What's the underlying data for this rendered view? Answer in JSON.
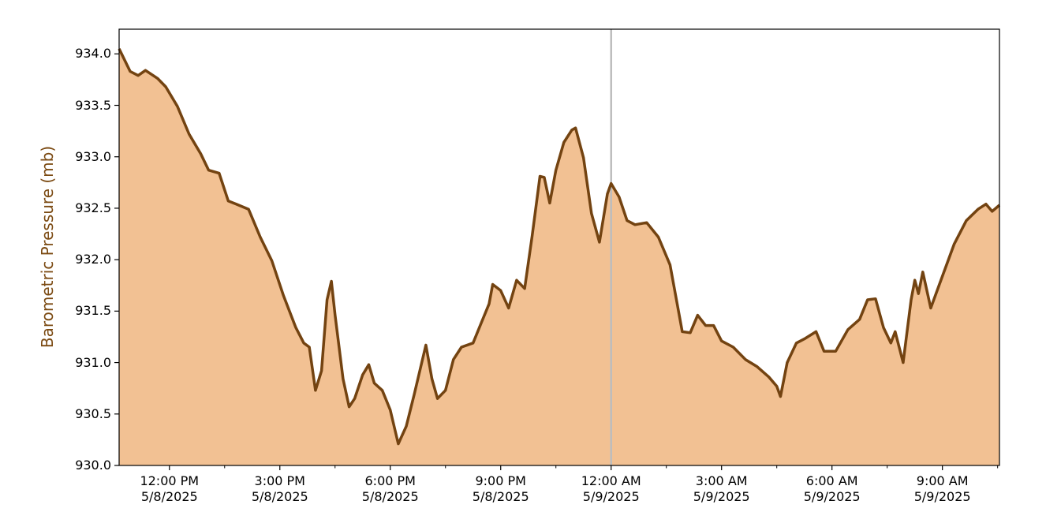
{
  "chart_data": {
    "type": "area",
    "ylabel": "Barometric Pressure (mb)",
    "line_color": "#734311",
    "fill_color": "#f2c193",
    "label_color": "#7b4a12",
    "vline": "2025-05-09 00:00",
    "vline_color": "#bdbdbd",
    "xlim": [
      "2025-05-08 10:38",
      "2025-05-09 10:33"
    ],
    "ylim": [
      930.0,
      934.24
    ],
    "yticks": [
      {
        "value": 930.0,
        "label": "930.0"
      },
      {
        "value": 930.5,
        "label": "930.5"
      },
      {
        "value": 931.0,
        "label": "931.0"
      },
      {
        "value": 931.5,
        "label": "931.5"
      },
      {
        "value": 932.0,
        "label": "932.0"
      },
      {
        "value": 932.5,
        "label": "932.5"
      },
      {
        "value": 933.0,
        "label": "933.0"
      },
      {
        "value": 933.5,
        "label": "933.5"
      },
      {
        "value": 934.0,
        "label": "934.0"
      }
    ],
    "xticks": [
      {
        "value": "2025-05-08 12:00",
        "label": "12:00 PM\n5/8/2025"
      },
      {
        "value": "2025-05-08 15:00",
        "label": "3:00 PM\n5/8/2025"
      },
      {
        "value": "2025-05-08 18:00",
        "label": "6:00 PM\n5/8/2025"
      },
      {
        "value": "2025-05-08 21:00",
        "label": "9:00 PM\n5/8/2025"
      },
      {
        "value": "2025-05-09 00:00",
        "label": "12:00 AM\n5/9/2025"
      },
      {
        "value": "2025-05-09 03:00",
        "label": "3:00 AM\n5/9/2025"
      },
      {
        "value": "2025-05-09 06:00",
        "label": "6:00 AM\n5/9/2025"
      },
      {
        "value": "2025-05-09 09:00",
        "label": "9:00 AM\n5/9/2025"
      }
    ],
    "xticks_minor": [
      "2025-05-08 13:30",
      "2025-05-08 16:30",
      "2025-05-08 19:30",
      "2025-05-08 22:30",
      "2025-05-09 01:30",
      "2025-05-09 04:30",
      "2025-05-09 07:30",
      "2025-05-09 10:30"
    ],
    "x": [
      "2025-05-08 10:38",
      "2025-05-08 10:56",
      "2025-05-08 11:09",
      "2025-05-08 11:21",
      "2025-05-08 11:41",
      "2025-05-08 11:54",
      "2025-05-08 12:13",
      "2025-05-08 12:32",
      "2025-05-08 12:51",
      "2025-05-08 13:04",
      "2025-05-08 13:21",
      "2025-05-08 13:36",
      "2025-05-08 13:49",
      "2025-05-08 14:09",
      "2025-05-08 14:28",
      "2025-05-08 14:47",
      "2025-05-08 15:06",
      "2025-05-08 15:26",
      "2025-05-08 15:39",
      "2025-05-08 15:48",
      "2025-05-08 15:58",
      "2025-05-08 16:08",
      "2025-05-08 16:17",
      "2025-05-08 16:24",
      "2025-05-08 16:30",
      "2025-05-08 16:43",
      "2025-05-08 16:53",
      "2025-05-08 17:02",
      "2025-05-08 17:15",
      "2025-05-08 17:25",
      "2025-05-08 17:34",
      "2025-05-08 17:47",
      "2025-05-08 18:00",
      "2025-05-08 18:13",
      "2025-05-08 18:26",
      "2025-05-08 18:39",
      "2025-05-08 18:58",
      "2025-05-08 19:08",
      "2025-05-08 19:17",
      "2025-05-08 19:30",
      "2025-05-08 19:43",
      "2025-05-08 19:56",
      "2025-05-08 20:15",
      "2025-05-08 20:28",
      "2025-05-08 20:41",
      "2025-05-08 20:47",
      "2025-05-08 21:00",
      "2025-05-08 21:13",
      "2025-05-08 21:26",
      "2025-05-08 21:39",
      "2025-05-08 21:51",
      "2025-05-08 22:04",
      "2025-05-08 22:11",
      "2025-05-08 22:20",
      "2025-05-08 22:30",
      "2025-05-08 22:43",
      "2025-05-08 22:56",
      "2025-05-08 23:02",
      "2025-05-08 23:15",
      "2025-05-08 23:28",
      "2025-05-08 23:41",
      "2025-05-08 23:54",
      "2025-05-09 00:00",
      "2025-05-09 00:13",
      "2025-05-09 00:26",
      "2025-05-09 00:39",
      "2025-05-09 00:58",
      "2025-05-09 01:17",
      "2025-05-09 01:36",
      "2025-05-09 01:56",
      "2025-05-09 02:09",
      "2025-05-09 02:21",
      "2025-05-09 02:34",
      "2025-05-09 02:47",
      "2025-05-09 03:00",
      "2025-05-09 03:19",
      "2025-05-09 03:39",
      "2025-05-09 03:58",
      "2025-05-09 04:17",
      "2025-05-09 04:30",
      "2025-05-09 04:36",
      "2025-05-09 04:47",
      "2025-05-09 05:02",
      "2025-05-09 05:15",
      "2025-05-09 05:34",
      "2025-05-09 05:47",
      "2025-05-09 06:06",
      "2025-05-09 06:26",
      "2025-05-09 06:45",
      "2025-05-09 06:58",
      "2025-05-09 07:11",
      "2025-05-09 07:24",
      "2025-05-09 07:36",
      "2025-05-09 07:43",
      "2025-05-09 07:56",
      "2025-05-09 08:09",
      "2025-05-09 08:15",
      "2025-05-09 08:21",
      "2025-05-09 08:28",
      "2025-05-09 08:41",
      "2025-05-09 09:00",
      "2025-05-09 09:19",
      "2025-05-09 09:39",
      "2025-05-09 09:58",
      "2025-05-09 10:11",
      "2025-05-09 10:21",
      "2025-05-09 10:33"
    ],
    "values": [
      934.05,
      933.83,
      933.79,
      933.84,
      933.76,
      933.68,
      933.49,
      933.22,
      933.03,
      932.87,
      932.84,
      932.57,
      932.54,
      932.49,
      932.22,
      931.99,
      931.65,
      931.34,
      931.19,
      931.15,
      930.73,
      930.92,
      931.61,
      931.79,
      931.46,
      930.84,
      930.57,
      930.65,
      930.88,
      930.98,
      930.8,
      930.73,
      930.54,
      930.21,
      930.38,
      930.69,
      931.17,
      930.84,
      930.65,
      930.73,
      931.03,
      931.15,
      931.19,
      931.38,
      931.57,
      931.76,
      931.7,
      931.53,
      931.8,
      931.72,
      932.22,
      932.81,
      932.8,
      932.55,
      932.87,
      933.14,
      933.26,
      933.28,
      932.99,
      932.45,
      932.17,
      932.64,
      932.74,
      932.61,
      932.38,
      932.34,
      932.36,
      932.22,
      931.95,
      931.3,
      931.29,
      931.46,
      931.36,
      931.36,
      931.21,
      931.15,
      931.03,
      930.96,
      930.86,
      930.77,
      930.67,
      931.0,
      931.19,
      931.23,
      931.3,
      931.11,
      931.11,
      931.32,
      931.42,
      931.61,
      931.62,
      931.34,
      931.19,
      931.3,
      931.0,
      931.61,
      931.8,
      931.67,
      931.88,
      931.53,
      931.84,
      932.15,
      932.38,
      932.49,
      932.54,
      932.47,
      932.53
    ]
  }
}
